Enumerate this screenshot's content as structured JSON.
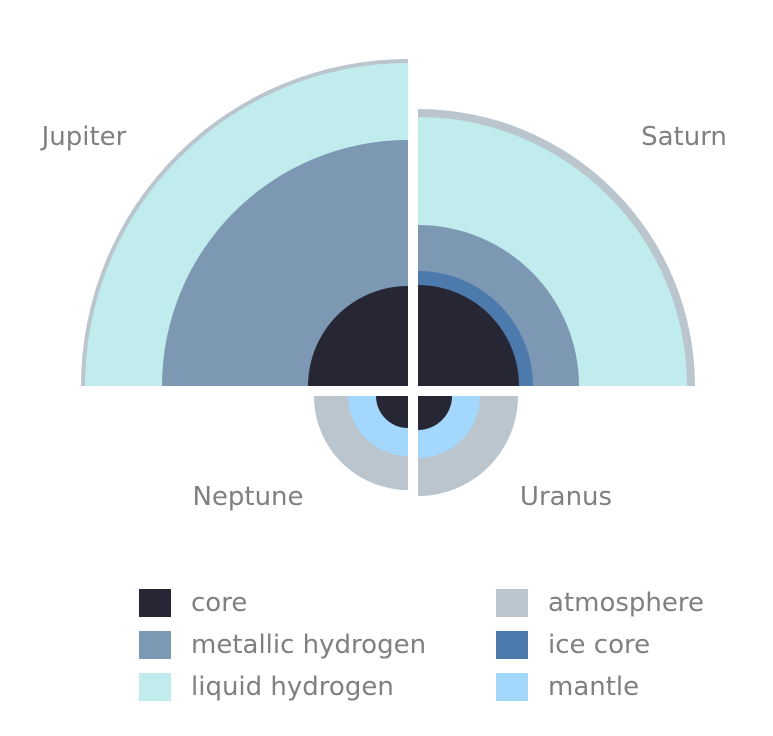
{
  "planets": {
    "jupiter": {
      "label": "Jupiter"
    },
    "saturn": {
      "label": "Saturn"
    },
    "neptune": {
      "label": "Neptune"
    },
    "uranus": {
      "label": "Uranus"
    }
  },
  "legend": [
    {
      "label": "core",
      "color": "#262634"
    },
    {
      "label": "metallic hydrogen",
      "color": "#7d98b3"
    },
    {
      "label": "liquid hydrogen",
      "color": "#c0eced"
    },
    {
      "label": "atmosphere",
      "color": "#bac5cd"
    },
    {
      "label": "ice core",
      "color": "#4d7aad"
    },
    {
      "label": "mantle",
      "color": "#a4d7fc"
    }
  ]
}
